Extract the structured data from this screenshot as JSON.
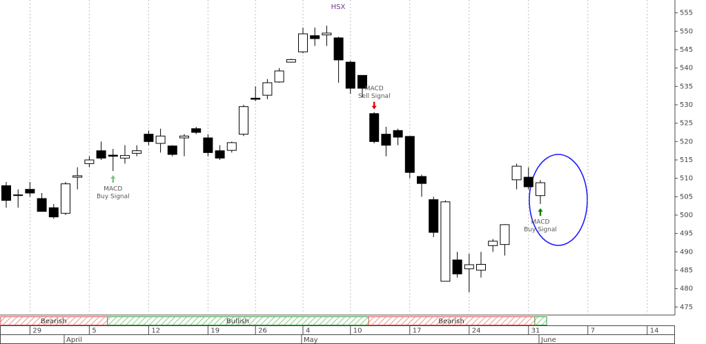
{
  "chart_data": {
    "type": "candlestick",
    "title": "HSX",
    "categories": [
      null,
      null,
      "29",
      null,
      null,
      null,
      null,
      "5",
      null,
      null,
      null,
      null,
      "12",
      null,
      null,
      null,
      null,
      "19",
      null,
      null,
      null,
      "26",
      null,
      null,
      null,
      "4",
      null,
      null,
      null,
      "10",
      null,
      null,
      null,
      null,
      "17",
      null,
      null,
      null,
      null,
      "24",
      null,
      null,
      null,
      null,
      "31",
      null
    ],
    "future_categories": [
      "7",
      "14"
    ],
    "months": [
      {
        "label": "April",
        "at": 5
      },
      {
        "label": "May",
        "at": 25
      },
      {
        "label": "June",
        "at": 45
      }
    ],
    "open": [
      508,
      505.5,
      507,
      504.5,
      502,
      500.5,
      510.3,
      514,
      517.5,
      516.3,
      515.5,
      516.8,
      522,
      519.5,
      518.8,
      521,
      523.5,
      521,
      517.5,
      517.6,
      522,
      531.8,
      532.6,
      536.2,
      541.6,
      544.4,
      548.8,
      549,
      548.2,
      541.6,
      538,
      527.6,
      522,
      523,
      521.4,
      510.5,
      504.2,
      482,
      487.8,
      485.4,
      485,
      491.7,
      492,
      509.6,
      510.3,
      505.3
    ],
    "high": [
      509,
      507,
      509,
      506,
      503,
      509,
      513,
      516,
      520,
      518,
      519,
      519,
      523,
      523.5,
      519,
      522,
      524,
      522,
      519,
      520,
      530,
      535,
      537,
      540,
      542.5,
      551,
      551,
      551.5,
      548.5,
      542,
      538,
      528,
      524,
      523.5,
      521.5,
      511,
      505,
      504,
      490,
      489.5,
      490,
      493.5,
      497.5,
      514,
      513,
      509.5
    ],
    "low": [
      502,
      502,
      505,
      501,
      499,
      500,
      507,
      513,
      515,
      512,
      514,
      516,
      519,
      517,
      516,
      516,
      522,
      516,
      515,
      517,
      521.5,
      531,
      531.5,
      536,
      541.5,
      544,
      546,
      546,
      536,
      533,
      532,
      519.5,
      516,
      519,
      510,
      505,
      494,
      482,
      483,
      479,
      483,
      490,
      489,
      507,
      507,
      503
    ],
    "close": [
      504,
      505.5,
      506,
      501,
      499.5,
      508.5,
      510.7,
      515,
      515.5,
      516,
      516.2,
      517.5,
      520,
      521.5,
      516.5,
      521.5,
      522.5,
      517,
      515.5,
      519.7,
      529.5,
      531.5,
      536,
      539.2,
      542.3,
      549.3,
      548,
      549.5,
      542.2,
      534.5,
      534.5,
      520,
      519,
      521.2,
      511.6,
      508.6,
      495.3,
      503.6,
      484,
      486.5,
      486.6,
      492.9,
      497.4,
      513.3,
      507.7,
      508.8
    ],
    "up_color": "#ffffff",
    "down_color": "#000000",
    "ylim": [
      473,
      558.5
    ],
    "yticks": [
      475,
      480,
      485,
      490,
      495,
      500,
      505,
      510,
      515,
      520,
      525,
      530,
      535,
      540,
      545,
      550,
      555
    ],
    "grid": true,
    "annotations": [
      {
        "lines": [
          "MACD",
          "Buy Signal"
        ],
        "at": 9,
        "direction": "up",
        "color": "#7fbf7f"
      },
      {
        "lines": [
          "MACD",
          "Sell Signal"
        ],
        "at": 31,
        "direction": "down",
        "color": "#e00000"
      },
      {
        "lines": [
          "MACD",
          "Buy Signal"
        ],
        "at": 45,
        "direction": "up",
        "color": "#008000"
      }
    ],
    "signals": [
      {
        "label": "Bearish",
        "from": 0,
        "to": 8,
        "color": "#d9534f"
      },
      {
        "label": "Bullish",
        "from": 9,
        "to": 30,
        "color": "#3c9a3c"
      },
      {
        "label": "Bearish",
        "from": 31,
        "to": 44,
        "color": "#d9534f"
      },
      {
        "label": null,
        "from": 45,
        "to": 45,
        "color": "#3c9a3c"
      }
    ]
  }
}
